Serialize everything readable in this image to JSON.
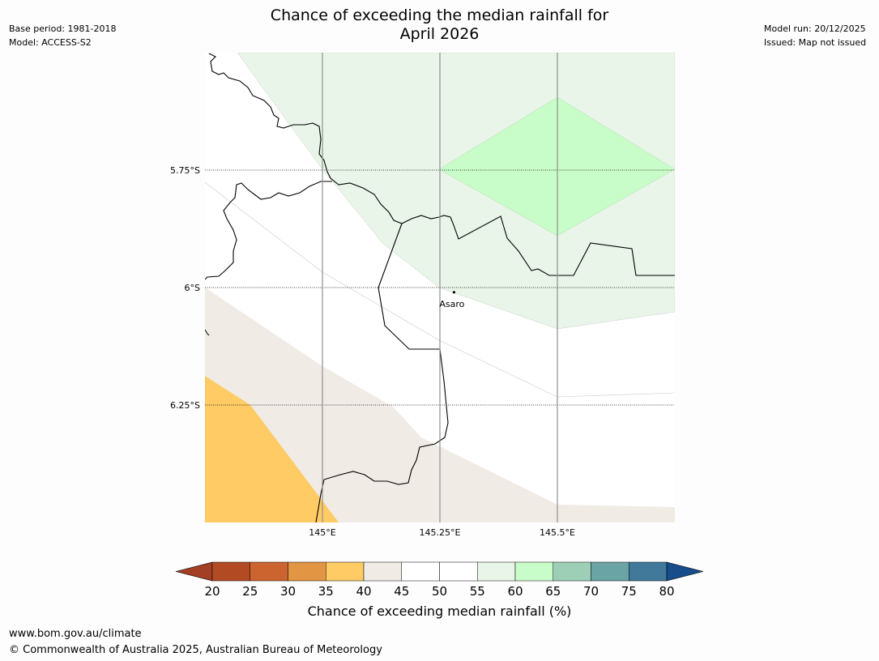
{
  "title": {
    "line1": "Chance of exceeding the median rainfall for",
    "line2": "April 2026"
  },
  "meta_left": {
    "base_period": "Base period: 1981-2018",
    "model": "Model: ACCESS-S2"
  },
  "meta_right": {
    "model_run": "Model run: 20/12/2025",
    "issued": "Issued: Map not issued"
  },
  "map": {
    "lat_labels": [
      "5.75°S",
      "6°S",
      "6.25°S"
    ],
    "lon_labels": [
      "145°E",
      "145.25°E",
      "145.5°E"
    ],
    "place": {
      "name": "Asaro",
      "lat": -6.01,
      "lon": 145.28
    },
    "colors": {
      "c35_40": "#fecb64",
      "c40_45": "#f0ebe5",
      "c55_60": "#e8f5e8",
      "c60_65": "#c8fcc8"
    }
  },
  "colorbar": {
    "ticks": [
      "20",
      "25",
      "30",
      "35",
      "40",
      "45",
      "50",
      "55",
      "60",
      "65",
      "70",
      "75",
      "80"
    ],
    "colors": [
      "#a33f24",
      "#b24a24",
      "#cc6430",
      "#e29543",
      "#fecb64",
      "#f0ebe5",
      "#ffffff",
      "#ffffff",
      "#e8f5e8",
      "#c8fcc8",
      "#9dcfb7",
      "#6aa4a4",
      "#41799b",
      "#164d8a"
    ],
    "title": "Chance of exceeding median rainfall (%)"
  },
  "footer": {
    "url": "www.bom.gov.au/climate",
    "copyright": "© Commonwealth of Australia 2025, Australian Bureau of Meteorology"
  }
}
